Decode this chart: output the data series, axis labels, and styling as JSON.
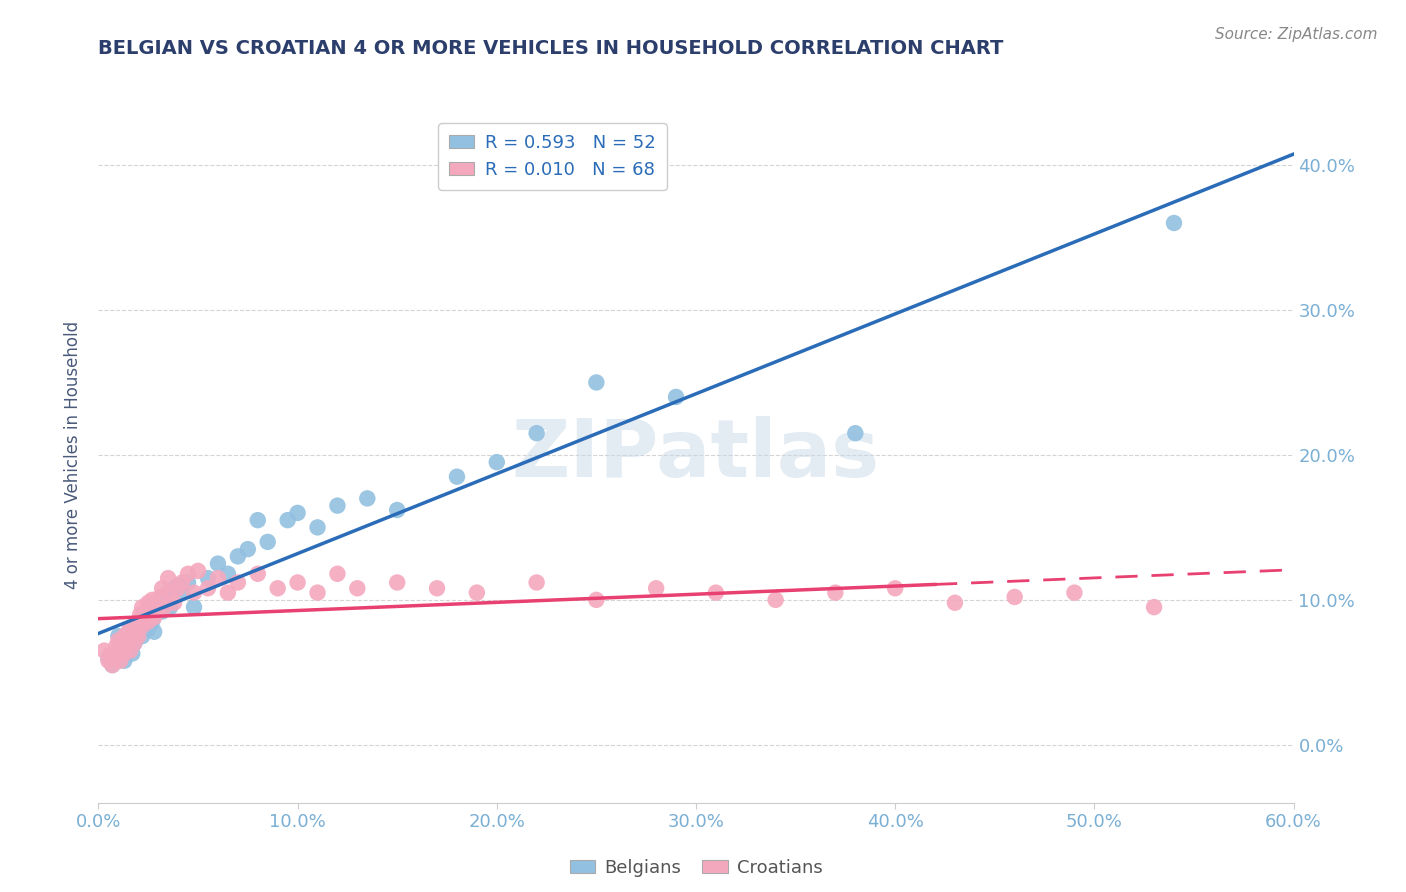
{
  "title": "BELGIAN VS CROATIAN 4 OR MORE VEHICLES IN HOUSEHOLD CORRELATION CHART",
  "source": "Source: ZipAtlas.com",
  "ylabel": "4 or more Vehicles in Household",
  "xlim": [
    0.0,
    0.6
  ],
  "ylim": [
    -0.04,
    0.44
  ],
  "yticks": [
    0.0,
    0.1,
    0.2,
    0.3,
    0.4
  ],
  "xticks": [
    0.0,
    0.1,
    0.2,
    0.3,
    0.4,
    0.5,
    0.6
  ],
  "belgian_color": "#92c0e0",
  "croatian_color": "#f4a8be",
  "belgian_line_color": "#2b6cb8",
  "croatian_line_color": "#e84070",
  "legend_belgian_label": "R = 0.593   N = 52",
  "legend_croatian_label": "R = 0.010   N = 68",
  "legend_belgians": "Belgians",
  "legend_croatians": "Croatians",
  "watermark": "ZIPatlas",
  "belgians_x": [
    0.005,
    0.007,
    0.01,
    0.01,
    0.012,
    0.013,
    0.015,
    0.015,
    0.016,
    0.017,
    0.018,
    0.02,
    0.02,
    0.021,
    0.022,
    0.022,
    0.023,
    0.025,
    0.025,
    0.026,
    0.027,
    0.028,
    0.03,
    0.032,
    0.033,
    0.035,
    0.036,
    0.038,
    0.04,
    0.042,
    0.045,
    0.048,
    0.055,
    0.06,
    0.065,
    0.07,
    0.075,
    0.08,
    0.085,
    0.095,
    0.1,
    0.11,
    0.12,
    0.135,
    0.15,
    0.18,
    0.2,
    0.22,
    0.25,
    0.29,
    0.38,
    0.54
  ],
  "belgians_y": [
    0.06,
    0.055,
    0.075,
    0.065,
    0.068,
    0.058,
    0.072,
    0.065,
    0.08,
    0.063,
    0.07,
    0.085,
    0.078,
    0.082,
    0.088,
    0.075,
    0.09,
    0.092,
    0.08,
    0.095,
    0.085,
    0.078,
    0.098,
    0.092,
    0.1,
    0.105,
    0.095,
    0.108,
    0.11,
    0.105,
    0.112,
    0.095,
    0.115,
    0.125,
    0.118,
    0.13,
    0.135,
    0.155,
    0.14,
    0.155,
    0.16,
    0.15,
    0.165,
    0.17,
    0.162,
    0.185,
    0.195,
    0.215,
    0.25,
    0.24,
    0.215,
    0.36
  ],
  "croatians_x": [
    0.003,
    0.005,
    0.006,
    0.007,
    0.008,
    0.009,
    0.01,
    0.01,
    0.011,
    0.012,
    0.013,
    0.013,
    0.014,
    0.015,
    0.015,
    0.016,
    0.017,
    0.018,
    0.018,
    0.019,
    0.02,
    0.02,
    0.021,
    0.022,
    0.022,
    0.023,
    0.024,
    0.025,
    0.025,
    0.026,
    0.027,
    0.028,
    0.03,
    0.031,
    0.032,
    0.033,
    0.035,
    0.036,
    0.038,
    0.04,
    0.042,
    0.045,
    0.048,
    0.05,
    0.055,
    0.06,
    0.065,
    0.07,
    0.08,
    0.09,
    0.1,
    0.11,
    0.12,
    0.13,
    0.15,
    0.17,
    0.19,
    0.22,
    0.25,
    0.28,
    0.31,
    0.34,
    0.37,
    0.4,
    0.43,
    0.46,
    0.49,
    0.53
  ],
  "croatians_y": [
    0.065,
    0.058,
    0.062,
    0.055,
    0.06,
    0.068,
    0.072,
    0.065,
    0.058,
    0.07,
    0.063,
    0.075,
    0.068,
    0.078,
    0.072,
    0.065,
    0.075,
    0.082,
    0.07,
    0.078,
    0.085,
    0.075,
    0.09,
    0.082,
    0.095,
    0.088,
    0.092,
    0.098,
    0.085,
    0.092,
    0.1,
    0.088,
    0.095,
    0.102,
    0.108,
    0.095,
    0.115,
    0.105,
    0.098,
    0.108,
    0.112,
    0.118,
    0.105,
    0.12,
    0.108,
    0.115,
    0.105,
    0.112,
    0.118,
    0.108,
    0.112,
    0.105,
    0.118,
    0.108,
    0.112,
    0.108,
    0.105,
    0.112,
    0.1,
    0.108,
    0.105,
    0.1,
    0.105,
    0.108,
    0.098,
    0.102,
    0.105,
    0.095
  ],
  "background_color": "#ffffff",
  "grid_color": "#d0d0d0",
  "title_color": "#2c3e6b",
  "axis_label_color": "#7bafd4",
  "ylabel_color": "#4a5a7a",
  "source_color": "#888888"
}
